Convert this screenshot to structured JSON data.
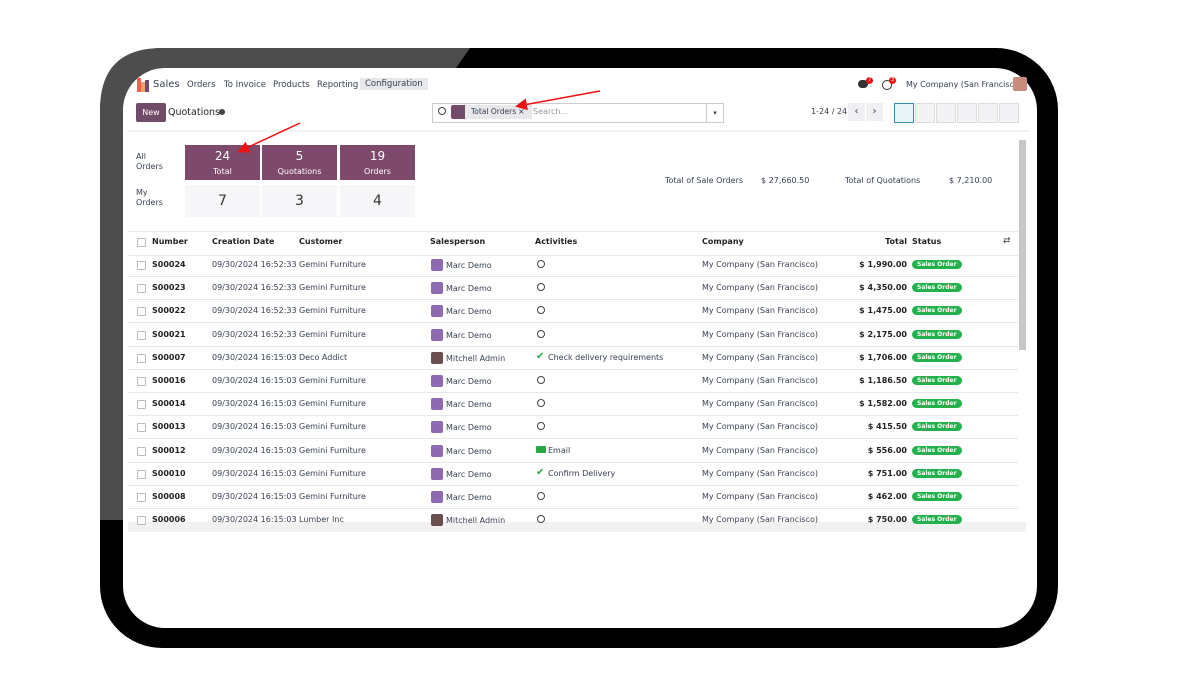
{
  "nav": {
    "app": "Sales",
    "menu": [
      "Orders",
      "To Invoice",
      "Products",
      "Reporting",
      "Configuration"
    ],
    "chat_badge": "7",
    "activity_badge": "3",
    "company": "My Company (San Francisco)"
  },
  "control": {
    "new_button": "New",
    "breadcrumb": "Quotations",
    "facet": "Total Orders",
    "search_placeholder": "Search...",
    "pager": "1-24 / 24"
  },
  "dashboard": {
    "all_label": "All Orders",
    "my_label": "My Orders",
    "tiles": [
      {
        "all": "24",
        "label": "Total",
        "my": "7"
      },
      {
        "all": "5",
        "label": "Quotations",
        "my": "3"
      },
      {
        "all": "19",
        "label": "Orders",
        "my": "4"
      }
    ],
    "totals": [
      {
        "label": "Total of Sale Orders",
        "value": "$ 27,660.50"
      },
      {
        "label": "Total of Quotations",
        "value": "$ 7,210.00"
      }
    ]
  },
  "table": {
    "headers": [
      "Number",
      "Creation Date",
      "Customer",
      "Salesperson",
      "Activities",
      "Company",
      "Total",
      "Status"
    ],
    "rows": [
      {
        "number": "S00024",
        "date": "09/30/2024 16:52:33",
        "customer": "Gemini Furniture",
        "salesperson": "Marc Demo",
        "icon": "clock",
        "company": "My Company (San Francisco)",
        "total": "$ 1,990.00",
        "status": "Sales Order"
      },
      {
        "number": "S00023",
        "date": "09/30/2024 16:52:33",
        "customer": "Gemini Furniture",
        "salesperson": "Marc Demo",
        "icon": "clock",
        "company": "My Company (San Francisco)",
        "total": "$ 4,350.00",
        "status": "Sales Order"
      },
      {
        "number": "S00022",
        "date": "09/30/2024 16:52:33",
        "customer": "Gemini Furniture",
        "salesperson": "Marc Demo",
        "icon": "clock",
        "company": "My Company (San Francisco)",
        "total": "$ 1,475.00",
        "status": "Sales Order"
      },
      {
        "number": "S00021",
        "date": "09/30/2024 16:52:33",
        "customer": "Gemini Furniture",
        "salesperson": "Marc Demo",
        "icon": "clock",
        "company": "My Company (San Francisco)",
        "total": "$ 2,175.00",
        "status": "Sales Order"
      },
      {
        "number": "S00007",
        "date": "09/30/2024 16:15:03",
        "customer": "Deco Addict",
        "salesperson": "Mitchell Admin",
        "icon": "check",
        "activity": "Check delivery requirements",
        "company": "My Company (San Francisco)",
        "total": "$ 1,706.00",
        "status": "Sales Order"
      },
      {
        "number": "S00016",
        "date": "09/30/2024 16:15:03",
        "customer": "Gemini Furniture",
        "salesperson": "Marc Demo",
        "icon": "clock",
        "company": "My Company (San Francisco)",
        "total": "$ 1,186.50",
        "status": "Sales Order"
      },
      {
        "number": "S00014",
        "date": "09/30/2024 16:15:03",
        "customer": "Gemini Furniture",
        "salesperson": "Marc Demo",
        "icon": "clock",
        "company": "My Company (San Francisco)",
        "total": "$ 1,582.00",
        "status": "Sales Order"
      },
      {
        "number": "S00013",
        "date": "09/30/2024 16:15:03",
        "customer": "Gemini Furniture",
        "salesperson": "Marc Demo",
        "icon": "clock",
        "company": "My Company (San Francisco)",
        "total": "$ 415.50",
        "status": "Sales Order"
      },
      {
        "number": "S00012",
        "date": "09/30/2024 16:15:03",
        "customer": "Gemini Furniture",
        "salesperson": "Marc Demo",
        "icon": "email",
        "activity": "Email",
        "company": "My Company (San Francisco)",
        "total": "$ 556.00",
        "status": "Sales Order"
      },
      {
        "number": "S00010",
        "date": "09/30/2024 16:15:03",
        "customer": "Gemini Furniture",
        "salesperson": "Marc Demo",
        "icon": "check",
        "activity": "Confirm Delivery",
        "company": "My Company (San Francisco)",
        "total": "$ 751.00",
        "status": "Sales Order"
      },
      {
        "number": "S00008",
        "date": "09/30/2024 16:15:03",
        "customer": "Gemini Furniture",
        "salesperson": "Marc Demo",
        "icon": "clock",
        "company": "My Company (San Francisco)",
        "total": "$ 462.00",
        "status": "Sales Order"
      },
      {
        "number": "S00006",
        "date": "09/30/2024 16:15:03",
        "customer": "Lumber Inc",
        "salesperson": "Mitchell Admin",
        "icon": "clock",
        "company": "My Company (San Francisco)",
        "total": "$ 750.00",
        "status": "Sales Order"
      }
    ]
  }
}
